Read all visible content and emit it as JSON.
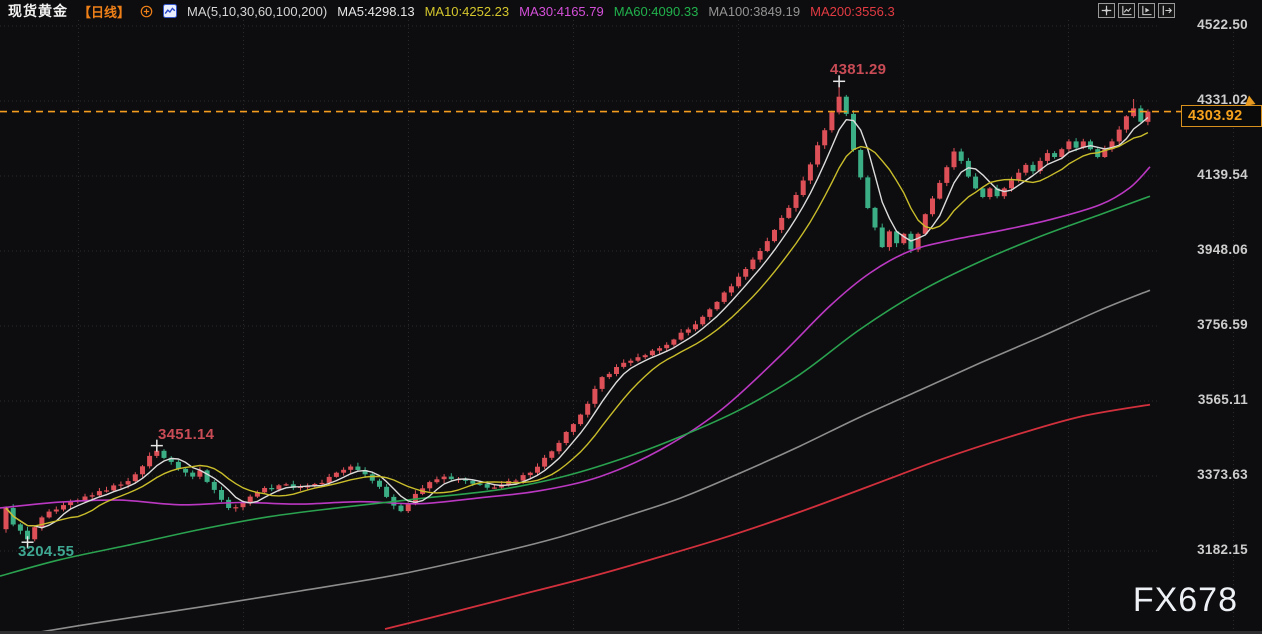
{
  "header": {
    "symbol": "现货黄金",
    "period": "【日线】",
    "ma_header": "MA(5,10,30,60,100,200)",
    "ma_values": [
      {
        "label": "MA5:4298.13",
        "color": "#e6e6e6"
      },
      {
        "label": "MA10:4252.23",
        "color": "#d4c62c"
      },
      {
        "label": "MA30:4165.79",
        "color": "#d44fd8"
      },
      {
        "label": "MA60:4090.33",
        "color": "#21b14c"
      },
      {
        "label": "MA100:3849.19",
        "color": "#939393"
      },
      {
        "label": "MA200:3556.3",
        "color": "#e23b42"
      }
    ]
  },
  "toolbar": {
    "buttons": [
      {
        "name": "crosshair"
      },
      {
        "name": "axis-scale"
      },
      {
        "name": "axis-play"
      },
      {
        "name": "collapse-right"
      }
    ]
  },
  "watermark": "FX678",
  "chart_data": {
    "type": "candlestick",
    "title": "现货黄金 日线",
    "legend": [
      "MA5",
      "MA10",
      "MA30",
      "MA60",
      "MA100",
      "MA200"
    ],
    "y_axis": {
      "ticks": [
        "4522.50",
        "4331.02",
        "4139.54",
        "3948.06",
        "3756.59",
        "3565.11",
        "3373.63",
        "3182.15"
      ],
      "top_tick_y": 26,
      "tick_spacing_px": 75,
      "ylim": [
        2970,
        4589
      ]
    },
    "current_price": {
      "value": "4303.92",
      "color": "#f6a21d",
      "line_color": "#f39c1f"
    },
    "grid": {
      "vertical_x": [
        78,
        243,
        408,
        573,
        738,
        903,
        1068,
        1233
      ],
      "style": "dotted",
      "color": "#2a2a2c"
    },
    "colors": {
      "up": "#dd5058",
      "down": "#3bae85",
      "background": "#0d0d0f"
    },
    "annotations": [
      {
        "text": "4381.29",
        "index": 116,
        "price": 4381.29,
        "type": "high",
        "color": "#c84b55"
      },
      {
        "text": "3451.14",
        "index": 21,
        "price": 3451.14,
        "type": "high",
        "color": "#c84b55"
      },
      {
        "text": "3204.55",
        "index": 3,
        "price": 3204.55,
        "type": "low",
        "color": "#3fa892"
      }
    ],
    "candles": {
      "count": 160,
      "x0": 6,
      "dx": 7.182,
      "body_width": 5,
      "first_open": 3238,
      "last_close": 4303.92,
      "close_anchors": [
        [
          0,
          3292
        ],
        [
          1,
          3250
        ],
        [
          3,
          3212
        ],
        [
          5,
          3268
        ],
        [
          7,
          3288
        ],
        [
          10,
          3312
        ],
        [
          13,
          3335
        ],
        [
          16,
          3352
        ],
        [
          18,
          3378
        ],
        [
          20,
          3425
        ],
        [
          21,
          3438
        ],
        [
          22,
          3420
        ],
        [
          24,
          3392
        ],
        [
          26,
          3372
        ],
        [
          27,
          3388
        ],
        [
          29,
          3338
        ],
        [
          31,
          3292
        ],
        [
          33,
          3305
        ],
        [
          35,
          3332
        ],
        [
          38,
          3350
        ],
        [
          41,
          3346
        ],
        [
          44,
          3356
        ],
        [
          46,
          3382
        ],
        [
          48,
          3398
        ],
        [
          50,
          3378
        ],
        [
          52,
          3346
        ],
        [
          54,
          3298
        ],
        [
          55,
          3284
        ],
        [
          57,
          3328
        ],
        [
          59,
          3358
        ],
        [
          61,
          3372
        ],
        [
          63,
          3366
        ],
        [
          65,
          3354
        ],
        [
          67,
          3344
        ],
        [
          69,
          3352
        ],
        [
          71,
          3362
        ],
        [
          73,
          3382
        ],
        [
          75,
          3420
        ],
        [
          77,
          3458
        ],
        [
          79,
          3506
        ],
        [
          81,
          3558
        ],
        [
          83,
          3626
        ],
        [
          85,
          3652
        ],
        [
          87,
          3668
        ],
        [
          89,
          3682
        ],
        [
          91,
          3700
        ],
        [
          93,
          3722
        ],
        [
          95,
          3748
        ],
        [
          97,
          3780
        ],
        [
          99,
          3818
        ],
        [
          101,
          3858
        ],
        [
          103,
          3902
        ],
        [
          105,
          3948
        ],
        [
          107,
          4002
        ],
        [
          109,
          4058
        ],
        [
          111,
          4128
        ],
        [
          113,
          4218
        ],
        [
          115,
          4302
        ],
        [
          116,
          4342
        ],
        [
          117,
          4298
        ],
        [
          118,
          4206
        ],
        [
          119,
          4136
        ],
        [
          120,
          4058
        ],
        [
          121,
          4008
        ],
        [
          122,
          3958
        ],
        [
          123,
          3998
        ],
        [
          124,
          3968
        ],
        [
          125,
          3992
        ],
        [
          126,
          3952
        ],
        [
          127,
          3992
        ],
        [
          128,
          4042
        ],
        [
          129,
          4082
        ],
        [
          130,
          4122
        ],
        [
          131,
          4162
        ],
        [
          132,
          4202
        ],
        [
          133,
          4178
        ],
        [
          134,
          4138
        ],
        [
          135,
          4108
        ],
        [
          136,
          4086
        ],
        [
          137,
          4108
        ],
        [
          138,
          4088
        ],
        [
          139,
          4108
        ],
        [
          140,
          4128
        ],
        [
          141,
          4148
        ],
        [
          142,
          4168
        ],
        [
          143,
          4152
        ],
        [
          144,
          4178
        ],
        [
          145,
          4198
        ],
        [
          146,
          4188
        ],
        [
          147,
          4208
        ],
        [
          148,
          4228
        ],
        [
          149,
          4212
        ],
        [
          150,
          4228
        ],
        [
          151,
          4208
        ],
        [
          152,
          4188
        ],
        [
          153,
          4208
        ],
        [
          154,
          4228
        ],
        [
          155,
          4258
        ],
        [
          156,
          4292
        ],
        [
          157,
          4312
        ],
        [
          158,
          4278
        ],
        [
          159,
          4303.92
        ]
      ],
      "wick_overrides": [
        [
          3,
          "low",
          3204.55
        ],
        [
          21,
          "high",
          3451.14
        ],
        [
          116,
          "high",
          4381.29
        ],
        [
          157,
          "high",
          4336
        ]
      ]
    },
    "ma_computed": [
      {
        "name": "MA5",
        "window": 5,
        "color": "#dcdcdc",
        "width": 1.4
      },
      {
        "name": "MA10",
        "window": 10,
        "color": "#c9bd2b",
        "width": 1.4
      }
    ],
    "ma_lines": [
      {
        "name": "MA30",
        "color": "#bb38c2",
        "width": 1.6,
        "points": [
          [
            0,
            3292
          ],
          [
            60,
            3307
          ],
          [
            120,
            3312
          ],
          [
            180,
            3300
          ],
          [
            240,
            3306
          ],
          [
            300,
            3302
          ],
          [
            360,
            3308
          ],
          [
            420,
            3303
          ],
          [
            480,
            3318
          ],
          [
            540,
            3336
          ],
          [
            600,
            3372
          ],
          [
            660,
            3440
          ],
          [
            720,
            3540
          ],
          [
            780,
            3680
          ],
          [
            830,
            3808
          ],
          [
            870,
            3892
          ],
          [
            910,
            3948
          ],
          [
            950,
            3975
          ],
          [
            1000,
            4000
          ],
          [
            1050,
            4028
          ],
          [
            1100,
            4066
          ],
          [
            1130,
            4110
          ],
          [
            1150,
            4163
          ]
        ]
      },
      {
        "name": "MA60",
        "color": "#2aa24f",
        "width": 1.6,
        "points": [
          [
            0,
            3118
          ],
          [
            60,
            3160
          ],
          [
            130,
            3198
          ],
          [
            200,
            3237
          ],
          [
            270,
            3270
          ],
          [
            340,
            3293
          ],
          [
            420,
            3316
          ],
          [
            500,
            3339
          ],
          [
            560,
            3370
          ],
          [
            620,
            3416
          ],
          [
            680,
            3474
          ],
          [
            740,
            3543
          ],
          [
            800,
            3633
          ],
          [
            860,
            3748
          ],
          [
            920,
            3845
          ],
          [
            980,
            3921
          ],
          [
            1040,
            3985
          ],
          [
            1100,
            4041
          ],
          [
            1150,
            4088
          ]
        ]
      },
      {
        "name": "MA100",
        "color": "#8d8d8d",
        "width": 1.6,
        "points": [
          [
            18,
            2966
          ],
          [
            100,
            3000
          ],
          [
            200,
            3039
          ],
          [
            300,
            3080
          ],
          [
            400,
            3123
          ],
          [
            500,
            3179
          ],
          [
            560,
            3218
          ],
          [
            620,
            3266
          ],
          [
            680,
            3317
          ],
          [
            740,
            3381
          ],
          [
            800,
            3450
          ],
          [
            860,
            3524
          ],
          [
            920,
            3593
          ],
          [
            980,
            3662
          ],
          [
            1040,
            3728
          ],
          [
            1100,
            3797
          ],
          [
            1150,
            3848
          ]
        ]
      },
      {
        "name": "MA200",
        "color": "#d2303c",
        "width": 1.8,
        "points": [
          [
            385,
            2983
          ],
          [
            450,
            3024
          ],
          [
            520,
            3070
          ],
          [
            590,
            3116
          ],
          [
            660,
            3167
          ],
          [
            730,
            3221
          ],
          [
            800,
            3282
          ],
          [
            870,
            3348
          ],
          [
            940,
            3415
          ],
          [
            1010,
            3474
          ],
          [
            1080,
            3525
          ],
          [
            1150,
            3556
          ]
        ]
      }
    ]
  }
}
